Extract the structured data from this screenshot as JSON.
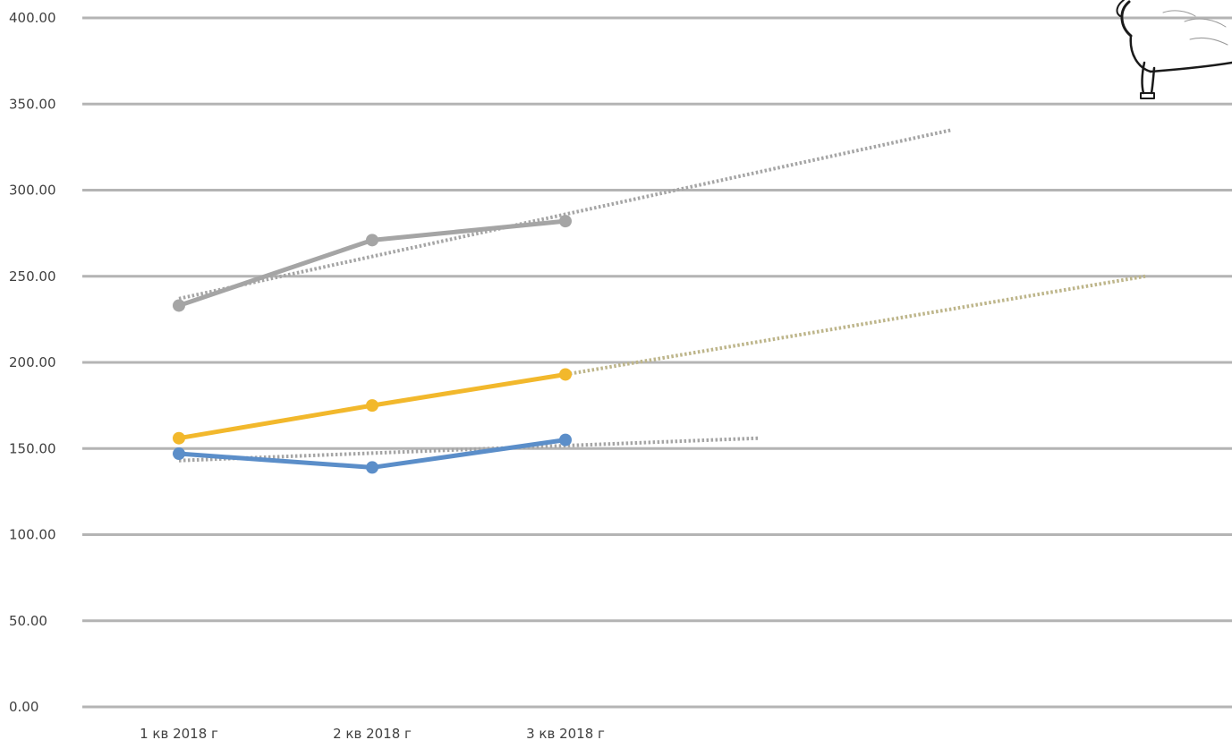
{
  "chart_data": {
    "type": "line",
    "categories": [
      "1 кв 2018 г",
      "2 кв 2018 г",
      "3 кв 2018 г"
    ],
    "ylim": [
      0,
      400
    ],
    "y_ticks": [
      "0.00",
      "50.00",
      "100.00",
      "150.00",
      "200.00",
      "250.00",
      "300.00",
      "350.00",
      "400.00"
    ],
    "grid": true,
    "legend": "none",
    "series": [
      {
        "values": [
          233,
          271,
          282
        ],
        "color": "#a5a5a5",
        "trend": {
          "from": [
            0,
            237
          ],
          "to": [
            4,
            335
          ],
          "color": "#a5a5a5"
        }
      },
      {
        "values": [
          156,
          175,
          193
        ],
        "color": "#f2b82c",
        "trend": {
          "from": [
            2,
            193
          ],
          "to": [
            5,
            250
          ],
          "color": "#bdb58a"
        }
      },
      {
        "values": [
          147,
          139,
          155
        ],
        "color": "#5b8ec9",
        "trend": {
          "from": [
            0,
            143
          ],
          "to": [
            3,
            156
          ],
          "color": "#a5a5a5"
        }
      }
    ],
    "decoration": {
      "icon": "pig-icon"
    }
  }
}
